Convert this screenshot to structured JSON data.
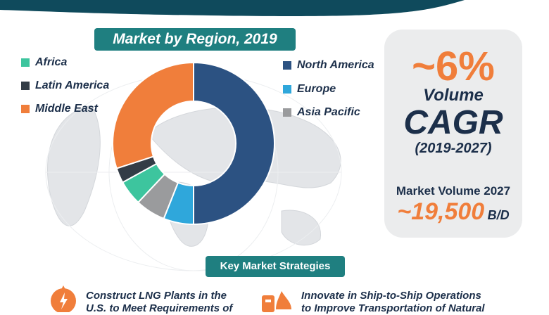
{
  "chart_data": {
    "type": "pie",
    "title": "Market by Region, 2019",
    "categories": [
      "North America",
      "Europe",
      "Asia Pacific",
      "Africa",
      "Latin America",
      "Middle East"
    ],
    "values": [
      50,
      6,
      6,
      5,
      3,
      30
    ],
    "colors": [
      "#2c5282",
      "#2fa7db",
      "#9a9b9d",
      "#3dc59e",
      "#333c46",
      "#f07e3b"
    ],
    "donut": true,
    "legend_placement": "sides"
  },
  "legend_left": [
    "Africa",
    "Latin America",
    "Middle East"
  ],
  "legend_right": [
    "North America",
    "Europe",
    "Asia Pacific"
  ],
  "cagr_card": {
    "percent": "~6%",
    "label_volume": "Volume",
    "label_cagr": "CAGR",
    "period": "(2019-2027)",
    "market_volume_label": "Market Volume 2027",
    "market_volume_value": "~19,500",
    "market_volume_unit": "B/D"
  },
  "strategies": {
    "title": "Key Market Strategies",
    "items": [
      {
        "line1": "Construct LNG Plants in the",
        "line2": "U.S. to Meet Requirements of"
      },
      {
        "line1": "Innovate in Ship-to-Ship Operations",
        "line2": "to Improve Transportation of Natural"
      }
    ]
  },
  "colors": {
    "navy": "#1c2f4a",
    "teal": "#1f7f80",
    "orange": "#f07e3b"
  }
}
